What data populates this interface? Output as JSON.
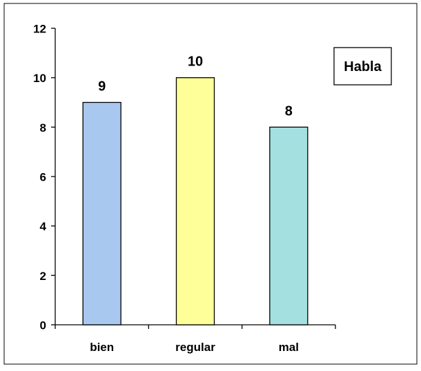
{
  "chart_data": {
    "type": "bar",
    "categories": [
      "bien",
      "regular",
      "mal"
    ],
    "values": [
      9,
      10,
      8
    ],
    "data_labels": [
      "9",
      "10",
      "8"
    ],
    "series": [
      {
        "name": "Habla",
        "values": [
          9,
          10,
          8
        ]
      }
    ],
    "bar_colors": [
      "#a9c8f0",
      "#ffff99",
      "#a4e0e0"
    ],
    "title": "",
    "xlabel": "",
    "ylabel": "",
    "ylim": [
      0,
      12
    ],
    "yticks": [
      0,
      2,
      4,
      6,
      8,
      10,
      12
    ],
    "ytick_labels": [
      "0",
      "2",
      "4",
      "6",
      "8",
      "10",
      "12"
    ],
    "grid": false,
    "legend": {
      "label": "Habla",
      "placement": "top-right"
    }
  }
}
